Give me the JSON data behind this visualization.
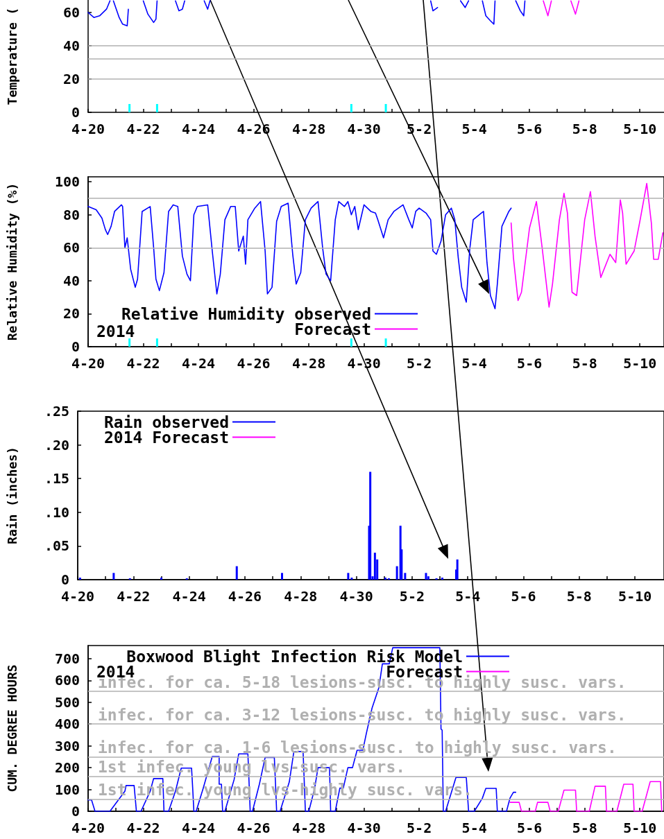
{
  "chart_data": [
    {
      "type": "line",
      "ylabel": "Temperature (",
      "marker": "none",
      "legend": false,
      "xlim": [
        "2014-04-20",
        "2014-05-10T21:00"
      ],
      "ylim": [
        0,
        67.5
      ],
      "xticks": [
        {
          "value": "2014-04-20",
          "label": "4-20"
        },
        {
          "value": "2014-04-21",
          "label": null
        },
        {
          "value": "2014-04-22",
          "label": "4-22"
        },
        {
          "value": "2014-04-23",
          "label": null
        },
        {
          "value": "2014-04-24",
          "label": "4-24"
        },
        {
          "value": "2014-04-25",
          "label": null
        },
        {
          "value": "2014-04-26",
          "label": "4-26"
        },
        {
          "value": "2014-04-27",
          "label": null
        },
        {
          "value": "2014-04-28",
          "label": "4-28"
        },
        {
          "value": "2014-04-29",
          "label": null
        },
        {
          "value": "2014-04-30",
          "label": "4-30"
        },
        {
          "value": "2014-05-01",
          "label": null
        },
        {
          "value": "2014-05-02",
          "label": "5-2"
        },
        {
          "value": "2014-05-03",
          "label": null
        },
        {
          "value": "2014-05-04",
          "label": "5-4"
        },
        {
          "value": "2014-05-05",
          "label": null
        },
        {
          "value": "2014-05-06",
          "label": "5-6"
        },
        {
          "value": "2014-05-07",
          "label": null
        },
        {
          "value": "2014-05-08",
          "label": "5-8"
        },
        {
          "value": "2014-05-09",
          "label": null
        },
        {
          "value": "2014-05-10",
          "label": "5-10"
        }
      ],
      "yticks": [
        0,
        20,
        40,
        60
      ],
      "ref_lines": [
        {
          "axis": "y",
          "value": 20,
          "color": "#b0b0b0"
        },
        {
          "axis": "y",
          "value": 32,
          "color": "#b0b0b0"
        },
        {
          "axis": "y",
          "value": 40,
          "color": "#b0b0b0"
        }
      ],
      "series": [
        {
          "color": "#0000ff",
          "x": [
            "2014-04-20T00:00",
            "2014-04-20T05:00",
            "2014-04-20T10:00",
            "2014-04-20T16:00",
            "2014-04-20T19:00",
            "2014-04-20T21:00",
            "2014-04-20T22:00",
            "2014-04-21T03:00",
            "2014-04-21T06:00",
            "2014-04-21T10:00",
            "2014-04-21T11:00",
            "2014-04-21T12:00",
            "2014-04-22T00:00",
            "2014-04-22T04:00",
            "2014-04-22T09:00",
            "2014-04-22T11:00",
            "2014-04-22T12:00",
            "2014-04-22T14:00",
            "2014-04-23T04:00",
            "2014-04-23T07:00",
            "2014-04-23T10:00",
            "2014-04-23T12:00",
            "2014-04-23T14:00",
            "2014-04-24T05:00",
            "2014-04-24T08:00",
            "2014-04-24T10:00",
            "2014-04-24T12:00",
            "2014-05-02T10:00",
            "2014-05-02T12:00",
            "2014-05-02T16:00",
            "2014-05-02T18:00",
            "2014-05-03T12:00",
            "2014-05-03T16:00",
            "2014-05-03T19:00",
            "2014-05-03T21:00",
            "2014-05-04T07:00",
            "2014-05-04T10:00",
            "2014-05-04T14:00",
            "2014-05-04T17:00",
            "2014-05-04T18:00",
            "2014-05-04T20:00",
            "2014-05-05T12:00",
            "2014-05-05T16:00",
            "2014-05-05T19:00",
            "2014-05-05T20:00"
          ],
          "values": [
            60,
            57,
            58,
            62,
            67,
            null,
            67,
            57,
            53,
            52,
            62,
            null,
            67,
            59,
            54,
            56,
            67,
            null,
            67,
            61,
            62,
            67,
            null,
            67,
            62,
            67,
            null,
            67,
            61,
            63,
            null,
            67,
            63,
            67,
            null,
            67,
            58,
            55,
            53,
            67,
            null,
            67,
            61,
            58,
            67
          ]
        },
        {
          "color": "#ff00ff",
          "x": [
            "2014-05-06T12:00",
            "2014-05-06T16:00",
            "2014-05-06T19:00",
            "2014-05-06T21:00",
            "2014-05-07T12:00",
            "2014-05-07T16:00",
            "2014-05-07T19:00"
          ],
          "values": [
            67,
            58,
            67,
            null,
            67,
            59,
            67
          ]
        },
        {
          "type": "bar",
          "color": "#00ffff",
          "x": [
            "2014-04-21T12:00",
            "2014-04-22T12:00",
            "2014-04-29T13:00",
            "2014-04-30T19:00"
          ],
          "values": [
            5,
            5,
            5,
            5
          ]
        }
      ]
    },
    {
      "type": "line",
      "ylabel": "Relative Humidity (%)",
      "marker": "none",
      "legend": "bottom left",
      "annotations": [
        "2014"
      ],
      "xlim": [
        "2014-04-20",
        "2014-05-10T21:00"
      ],
      "ylim": [
        0,
        103
      ],
      "xticks": [
        {
          "value": "2014-04-20",
          "label": "4-20"
        },
        {
          "value": "2014-04-21",
          "label": null
        },
        {
          "value": "2014-04-22",
          "label": "4-22"
        },
        {
          "value": "2014-04-23",
          "label": null
        },
        {
          "value": "2014-04-24",
          "label": "4-24"
        },
        {
          "value": "2014-04-25",
          "label": null
        },
        {
          "value": "2014-04-26",
          "label": "4-26"
        },
        {
          "value": "2014-04-27",
          "label": null
        },
        {
          "value": "2014-04-28",
          "label": "4-28"
        },
        {
          "value": "2014-04-29",
          "label": null
        },
        {
          "value": "2014-04-30",
          "label": "4-30"
        },
        {
          "value": "2014-05-01",
          "label": null
        },
        {
          "value": "2014-05-02",
          "label": "5-2"
        },
        {
          "value": "2014-05-03",
          "label": null
        },
        {
          "value": "2014-05-04",
          "label": "5-4"
        },
        {
          "value": "2014-05-05",
          "label": null
        },
        {
          "value": "2014-05-06",
          "label": "5-6"
        },
        {
          "value": "2014-05-07",
          "label": null
        },
        {
          "value": "2014-05-08",
          "label": "5-8"
        },
        {
          "value": "2014-05-09",
          "label": null
        },
        {
          "value": "2014-05-10",
          "label": "5-10"
        }
      ],
      "yticks": [
        0,
        20,
        40,
        60,
        80,
        100
      ],
      "ref_lines": [
        {
          "axis": "y",
          "value": 60,
          "color": "#b0b0b0"
        },
        {
          "axis": "y",
          "value": 90,
          "color": "#b0b0b0"
        }
      ],
      "series": [
        {
          "name": "Relative Humidity observed",
          "color": "#0000ff",
          "x": [
            "2014-04-20T00:00",
            "2014-04-20T07:00",
            "2014-04-20T12:00",
            "2014-04-20T15:00",
            "2014-04-20T17:00",
            "2014-04-20T20:00",
            "2014-04-20T23:00",
            "2014-04-21T05:00",
            "2014-04-21T06:00",
            "2014-04-21T08:00",
            "2014-04-21T10:00",
            "2014-04-21T13:00",
            "2014-04-21T17:00",
            "2014-04-21T19:00",
            "2014-04-21T23:00",
            "2014-04-22T06:00",
            "2014-04-22T09:00",
            "2014-04-22T11:00",
            "2014-04-22T14:00",
            "2014-04-22T18:00",
            "2014-04-22T22:00",
            "2014-04-23T02:00",
            "2014-04-23T06:00",
            "2014-04-23T10:00",
            "2014-04-23T14:00",
            "2014-04-23T17:00",
            "2014-04-23T20:00",
            "2014-04-23T23:00",
            "2014-04-24T08:00",
            "2014-04-24T12:00",
            "2014-04-24T16:00",
            "2014-04-24T19:00",
            "2014-04-24T23:00",
            "2014-04-25T04:00",
            "2014-04-25T08:00",
            "2014-04-25T11:00",
            "2014-04-25T15:00",
            "2014-04-25T17:00",
            "2014-04-25T19:00",
            "2014-04-26T01:00",
            "2014-04-26T06:00",
            "2014-04-26T10:00",
            "2014-04-26T12:00",
            "2014-04-26T16:00",
            "2014-04-26T20:00",
            "2014-04-27T00:00",
            "2014-04-27T06:00",
            "2014-04-27T10:00",
            "2014-04-27T13:00",
            "2014-04-27T17:00",
            "2014-04-27T21:00",
            "2014-04-28T02:00",
            "2014-04-28T08:00",
            "2014-04-28T12:00",
            "2014-04-28T15:00",
            "2014-04-28T19:00",
            "2014-04-28T23:00",
            "2014-04-29T02:00",
            "2014-04-29T07:00",
            "2014-04-29T10:00",
            "2014-04-29T13:00",
            "2014-04-29T16:00",
            "2014-04-29T19:00",
            "2014-04-29T22:00",
            "2014-04-30T00:00",
            "2014-04-30T06:00",
            "2014-04-30T10:00",
            "2014-04-30T12:00",
            "2014-04-30T17:00",
            "2014-04-30T21:00",
            "2014-05-01T02:00",
            "2014-05-01T10:00",
            "2014-05-01T15:00",
            "2014-05-01T18:00",
            "2014-05-01T21:00",
            "2014-05-02T00:00",
            "2014-05-02T06:00",
            "2014-05-02T10:00",
            "2014-05-02T12:00",
            "2014-05-02T15:00",
            "2014-05-02T19:00",
            "2014-05-02T23:00",
            "2014-05-03T04:00",
            "2014-05-03T07:00",
            "2014-05-03T10:00",
            "2014-05-03T13:00",
            "2014-05-03T17:00",
            "2014-05-03T20:00",
            "2014-05-03T23:00",
            "2014-05-04T06:00",
            "2014-05-04T08:00",
            "2014-05-04T11:00",
            "2014-05-04T14:00",
            "2014-05-04T18:00",
            "2014-05-04T20:00",
            "2014-05-05T00:00",
            "2014-05-05T06:00",
            "2014-05-05T08:00"
          ],
          "values": [
            85,
            83,
            78,
            71,
            68,
            73,
            82,
            86,
            85,
            60,
            66,
            47,
            36,
            41,
            82,
            85,
            60,
            41,
            34,
            45,
            82,
            86,
            85,
            55,
            44,
            40,
            80,
            85,
            86,
            58,
            32,
            44,
            77,
            85,
            85,
            58,
            67,
            50,
            77,
            84,
            88,
            58,
            32,
            36,
            76,
            85,
            87,
            56,
            38,
            45,
            77,
            84,
            88,
            60,
            44,
            40,
            77,
            88,
            85,
            88,
            80,
            85,
            71,
            80,
            86,
            82,
            81,
            77,
            66,
            77,
            82,
            86,
            77,
            72,
            82,
            84,
            81,
            77,
            58,
            56,
            64,
            80,
            84,
            77,
            54,
            36,
            27,
            59,
            77,
            81,
            82,
            51,
            31,
            23,
            38,
            73,
            82,
            84
          ]
        },
        {
          "name": "Forecast",
          "color": "#ff00ff",
          "x": [
            "2014-05-05T08:00",
            "2014-05-05T10:00",
            "2014-05-05T14:00",
            "2014-05-05T17:00",
            "2014-05-06T00:00",
            "2014-05-06T06:00",
            "2014-05-06T11:00",
            "2014-05-06T17:00",
            "2014-05-06T20:00",
            "2014-05-07T02:00",
            "2014-05-07T06:00",
            "2014-05-07T09:00",
            "2014-05-07T13:00",
            "2014-05-07T17:00",
            "2014-05-08T00:00",
            "2014-05-08T05:00",
            "2014-05-08T09:00",
            "2014-05-08T14:00",
            "2014-05-08T22:00",
            "2014-05-09T03:00",
            "2014-05-09T07:00",
            "2014-05-09T09:00",
            "2014-05-09T12:00",
            "2014-05-09T19:00",
            "2014-05-10T00:00",
            "2014-05-10T06:00",
            "2014-05-10T10:00",
            "2014-05-10T12:00",
            "2014-05-10T16:00",
            "2014-05-10T20:00"
          ],
          "values": [
            75,
            54,
            28,
            33,
            72,
            88,
            60,
            24,
            38,
            77,
            93,
            81,
            33,
            31,
            77,
            94,
            67,
            42,
            56,
            51,
            89,
            81,
            50,
            58,
            76,
            99,
            75,
            53,
            53,
            69
          ]
        },
        {
          "type": "bar",
          "color": "#00ffff",
          "x": [
            "2014-04-21T12:00",
            "2014-04-22T12:00",
            "2014-04-29T13:00",
            "2014-04-30T19:00"
          ],
          "values": [
            5,
            5,
            5,
            5
          ]
        }
      ]
    },
    {
      "type": "bar",
      "ylabel": "Rain (inches)",
      "legend": "top left",
      "xlim": [
        "2014-04-20",
        "2014-05-11T01:00"
      ],
      "ylim": [
        0,
        0.25
      ],
      "xticks": [
        {
          "value": "2014-04-20",
          "label": "4-20"
        },
        {
          "value": "2014-04-21",
          "label": null
        },
        {
          "value": "2014-04-22",
          "label": "4-22"
        },
        {
          "value": "2014-04-23",
          "label": null
        },
        {
          "value": "2014-04-24",
          "label": "4-24"
        },
        {
          "value": "2014-04-25",
          "label": null
        },
        {
          "value": "2014-04-26",
          "label": "4-26"
        },
        {
          "value": "2014-04-27",
          "label": null
        },
        {
          "value": "2014-04-28",
          "label": "4-28"
        },
        {
          "value": "2014-04-29",
          "label": null
        },
        {
          "value": "2014-04-30",
          "label": "4-30"
        },
        {
          "value": "2014-05-01",
          "label": null
        },
        {
          "value": "2014-05-02",
          "label": "5-2"
        },
        {
          "value": "2014-05-03",
          "label": null
        },
        {
          "value": "2014-05-04",
          "label": "5-4"
        },
        {
          "value": "2014-05-05",
          "label": null
        },
        {
          "value": "2014-05-06",
          "label": "5-6"
        },
        {
          "value": "2014-05-07",
          "label": null
        },
        {
          "value": "2014-05-08",
          "label": "5-8"
        },
        {
          "value": "2014-05-09",
          "label": null
        },
        {
          "value": "2014-05-10",
          "label": "5-10"
        }
      ],
      "yticks": [
        0,
        {
          "value": 0.05,
          "label": ".05"
        },
        {
          "value": 0.1,
          "label": ".10"
        },
        {
          "value": 0.15,
          "label": ".15"
        },
        {
          "value": 0.2,
          "label": ".20"
        },
        {
          "value": 0.25,
          "label": ".25"
        }
      ],
      "series": [
        {
          "name": "Rain observed",
          "color": "#0000ff",
          "x": [
            "2014-04-20T02:00",
            "2014-04-21T07:00",
            "2014-04-21T21:00",
            "2014-04-23T00:00",
            "2014-04-23T22:00",
            "2014-04-25T17:00",
            "2014-04-27T08:00",
            "2014-04-29T17:00",
            "2014-04-29T20:00",
            "2014-04-30T11:00",
            "2014-04-30T12:00",
            "2014-04-30T14:00",
            "2014-04-30T16:00",
            "2014-04-30T18:00",
            "2014-05-01T01:00",
            "2014-05-01T04:00",
            "2014-05-01T11:00",
            "2014-05-01T14:00",
            "2014-05-01T15:00",
            "2014-05-01T18:00",
            "2014-05-02T12:00",
            "2014-05-02T14:00",
            "2014-05-02T21:00",
            "2014-05-03T02:00",
            "2014-05-03T14:00",
            "2014-05-03T15:00"
          ],
          "values": [
            0.003,
            0.01,
            0.002,
            0.003,
            0.002,
            0.02,
            0.01,
            0.01,
            0.003,
            0.08,
            0.16,
            0.005,
            0.04,
            0.03,
            0.003,
            0.002,
            0.02,
            0.08,
            0.045,
            0.01,
            0.01,
            0.005,
            0.002,
            0.003,
            0.015,
            0.03
          ]
        },
        {
          "name": "2014 Forecast",
          "color": "#ff00ff"
        }
      ]
    },
    {
      "type": "line",
      "ylabel": "CUM. DEGREE HOURS",
      "marker": "none",
      "legend": "top left",
      "annotations": [
        "2014"
      ],
      "xlim": [
        "2014-04-20",
        "2014-05-10T21:00"
      ],
      "ylim": [
        0,
        760
      ],
      "xticks": [
        {
          "value": "2014-04-20",
          "label": "4-20"
        },
        {
          "value": "2014-04-21",
          "label": null
        },
        {
          "value": "2014-04-22",
          "label": "4-22"
        },
        {
          "value": "2014-04-23",
          "label": null
        },
        {
          "value": "2014-04-24",
          "label": "4-24"
        },
        {
          "value": "2014-04-25",
          "label": null
        },
        {
          "value": "2014-04-26",
          "label": "4-26"
        },
        {
          "value": "2014-04-27",
          "label": null
        },
        {
          "value": "2014-04-28",
          "label": "4-28"
        },
        {
          "value": "2014-04-29",
          "label": null
        },
        {
          "value": "2014-04-30",
          "label": "4-30"
        },
        {
          "value": "2014-05-01",
          "label": null
        },
        {
          "value": "2014-05-02",
          "label": "5-2"
        },
        {
          "value": "2014-05-03",
          "label": null
        },
        {
          "value": "2014-05-04",
          "label": "5-4"
        },
        {
          "value": "2014-05-05",
          "label": null
        },
        {
          "value": "2014-05-06",
          "label": "5-6"
        },
        {
          "value": "2014-05-07",
          "label": null
        },
        {
          "value": "2014-05-08",
          "label": "5-8"
        },
        {
          "value": "2014-05-09",
          "label": null
        },
        {
          "value": "2014-05-10",
          "label": "5-10"
        }
      ],
      "yticks": [
        0,
        100,
        200,
        300,
        400,
        500,
        600,
        700
      ],
      "ref_lines": [
        {
          "axis": "y",
          "value": 550,
          "color": "#b0b0b0",
          "label": "infec. for ca. 5-18 lesions-susc. to highly susc. vars."
        },
        {
          "axis": "y",
          "value": 400,
          "color": "#b0b0b0",
          "label": "infec. for ca. 3-12 lesions-susc. to highly susc. vars."
        },
        {
          "axis": "y",
          "value": 250,
          "color": "#b0b0b0",
          "label": "infec. for ca. 1-6 lesions-susc. to highly susc. vars."
        },
        {
          "axis": "y",
          "value": 160,
          "color": "#b0b0b0",
          "label": "1st infec. young lvs-susc. vars."
        },
        {
          "axis": "y",
          "value": 55,
          "color": "#b0b0b0",
          "label": "1st infec. young lvs-highly susc. vars."
        }
      ],
      "series": [
        {
          "name": "Boxwood Blight Infection Risk Model",
          "color": "#0000ff",
          "x": [
            "2014-04-20T00:00",
            "2014-04-20T03:00",
            "2014-04-20T06:00",
            "2014-04-20T19:00",
            "2014-04-21T08:00",
            "2014-04-21T09:00",
            "2014-04-21T16:00",
            "2014-04-21T17:00",
            "2014-04-21T18:00",
            "2014-04-21T22:00",
            "2014-04-22T06:00",
            "2014-04-22T09:00",
            "2014-04-22T17:00",
            "2014-04-22T18:00",
            "2014-04-22T22:00",
            "2014-04-23T04:00",
            "2014-04-23T09:00",
            "2014-04-23T18:00",
            "2014-04-23T19:00",
            "2014-04-23T20:00",
            "2014-04-23T22:00",
            "2014-04-24T04:00",
            "2014-04-24T12:00",
            "2014-04-24T18:00",
            "2014-04-24T18:00",
            "2014-04-24T20:00",
            "2014-04-24T21:00",
            "2014-04-24T23:00",
            "2014-04-25T07:00",
            "2014-04-25T11:00",
            "2014-04-25T19:00",
            "2014-04-25T20:00",
            "2014-04-25T21:00",
            "2014-04-25T23:00",
            "2014-04-26T05:00",
            "2014-04-26T10:00",
            "2014-04-26T18:00",
            "2014-04-26T19:00",
            "2014-04-26T20:00",
            "2014-04-26T23:00",
            "2014-04-27T07:00",
            "2014-04-27T11:00",
            "2014-04-27T19:00",
            "2014-04-27T20:00",
            "2014-04-27T21:00",
            "2014-04-28T00:00",
            "2014-04-28T05:00",
            "2014-04-28T08:00",
            "2014-04-28T18:00",
            "2014-04-28T19:00",
            "2014-04-28T23:00",
            "2014-04-29T03:00",
            "2014-04-29T06:00",
            "2014-04-29T10:00",
            "2014-04-29T14:00",
            "2014-04-29T18:00",
            "2014-04-29T23:00",
            "2014-04-30T02:00",
            "2014-04-30T07:00",
            "2014-04-30T13:00",
            "2014-04-30T16:00",
            "2014-04-30T22:00",
            "2014-05-01T01:00",
            "2014-05-02T18:00",
            "2014-05-02T19:00",
            "2014-05-02T20:00",
            "2014-05-02T21:00",
            "2014-05-02T23:00",
            "2014-05-03T05:00",
            "2014-05-03T08:00",
            "2014-05-03T17:00",
            "2014-05-03T19:00",
            "2014-05-04T00:00",
            "2014-05-04T07:00",
            "2014-05-04T10:00",
            "2014-05-04T19:00",
            "2014-05-04T20:00",
            "2014-05-05T04:00",
            "2014-05-05T07:00",
            "2014-05-05T10:00",
            "2014-05-05T12:00"
          ],
          "values": [
            52,
            52,
            0,
            0,
            92,
            118,
            118,
            60,
            0,
            0,
            92,
            150,
            150,
            0,
            0,
            92,
            198,
            198,
            103,
            0,
            0,
            103,
            251,
            251,
            124,
            124,
            0,
            0,
            145,
            263,
            263,
            134,
            0,
            0,
            124,
            247,
            247,
            129,
            0,
            0,
            134,
            274,
            274,
            140,
            0,
            0,
            103,
            200,
            200,
            0,
            0,
            106,
            106,
            200,
            200,
            280,
            280,
            356,
            473,
            568,
            676,
            676,
            750,
            750,
            377,
            372,
            0,
            0,
            103,
            155,
            155,
            0,
            0,
            60,
            105,
            105,
            0,
            0,
            60,
            87,
            87
          ]
        },
        {
          "name": "Forecast",
          "color": "#ff00ff",
          "x": [
            "2014-05-05T07:00",
            "2014-05-05T15:00",
            "2014-05-05T17:00",
            "2014-05-06T05:00",
            "2014-05-06T07:00",
            "2014-05-06T16:00",
            "2014-05-06T18:00",
            "2014-05-07T01:00",
            "2014-05-07T06:00",
            "2014-05-07T16:00",
            "2014-05-07T17:00",
            "2014-05-08T04:00",
            "2014-05-08T09:00",
            "2014-05-08T18:00",
            "2014-05-08T19:00",
            "2014-05-09T04:00",
            "2014-05-09T10:00",
            "2014-05-09T18:00",
            "2014-05-09T19:00",
            "2014-05-10T02:00",
            "2014-05-10T09:00",
            "2014-05-10T18:00",
            "2014-05-10T19:00"
          ],
          "values": [
            41,
            41,
            0,
            0,
            41,
            41,
            0,
            0,
            97,
            97,
            0,
            0,
            115,
            115,
            0,
            0,
            124,
            124,
            0,
            0,
            136,
            136,
            0
          ]
        }
      ]
    }
  ]
}
